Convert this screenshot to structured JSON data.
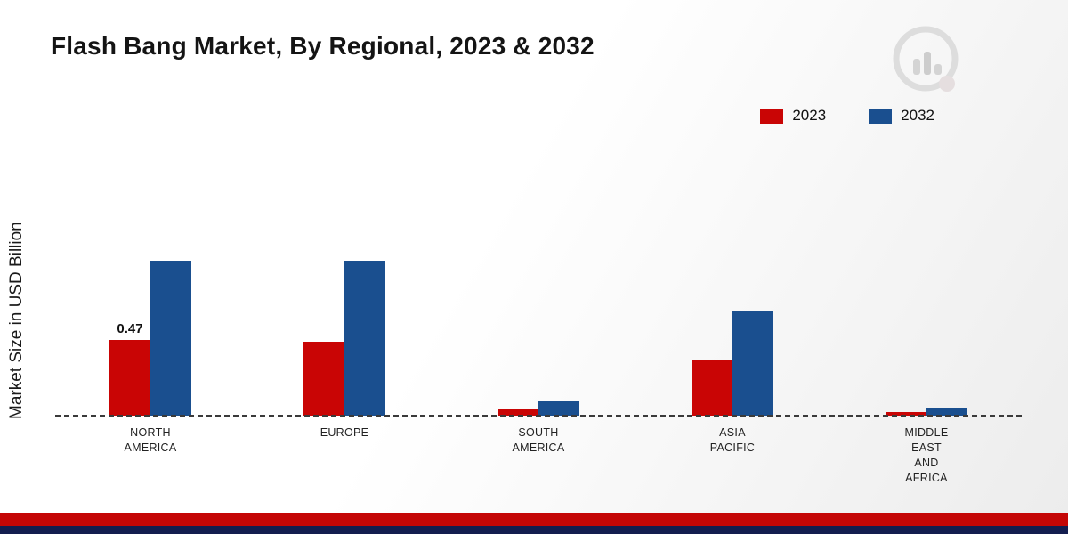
{
  "page": {
    "title": "Flash Bang Market, By Regional, 2023 & 2032"
  },
  "chart_data": {
    "type": "bar",
    "title": "Flash Bang Market, By Regional, 2023 & 2032",
    "xlabel": "",
    "ylabel": "Market Size in USD Billion",
    "categories": [
      "NORTH\nAMERICA",
      "EUROPE",
      "SOUTH\nAMERICA",
      "ASIA\nPACIFIC",
      "MIDDLE\nEAST\nAND\nAFRICA"
    ],
    "series": [
      {
        "name": "2023",
        "color": "#c90505",
        "values": [
          0.47,
          0.46,
          0.04,
          0.35,
          0.02
        ],
        "data_labels": [
          "0.47",
          null,
          null,
          null,
          null
        ]
      },
      {
        "name": "2032",
        "color": "#1a4f8f",
        "values": [
          0.96,
          0.96,
          0.09,
          0.65,
          0.05
        ],
        "data_labels": [
          null,
          null,
          null,
          null,
          null
        ]
      }
    ],
    "ylim": [
      0,
      1.05
    ],
    "grid": false,
    "legend_position": "top-right",
    "baseline_style": "dashed"
  },
  "colors": {
    "series_2023": "#c90505",
    "series_2032": "#1a4f8f",
    "footer_red": "#c40606",
    "footer_navy": "#131d4f",
    "baseline": "#3a3a3a"
  }
}
